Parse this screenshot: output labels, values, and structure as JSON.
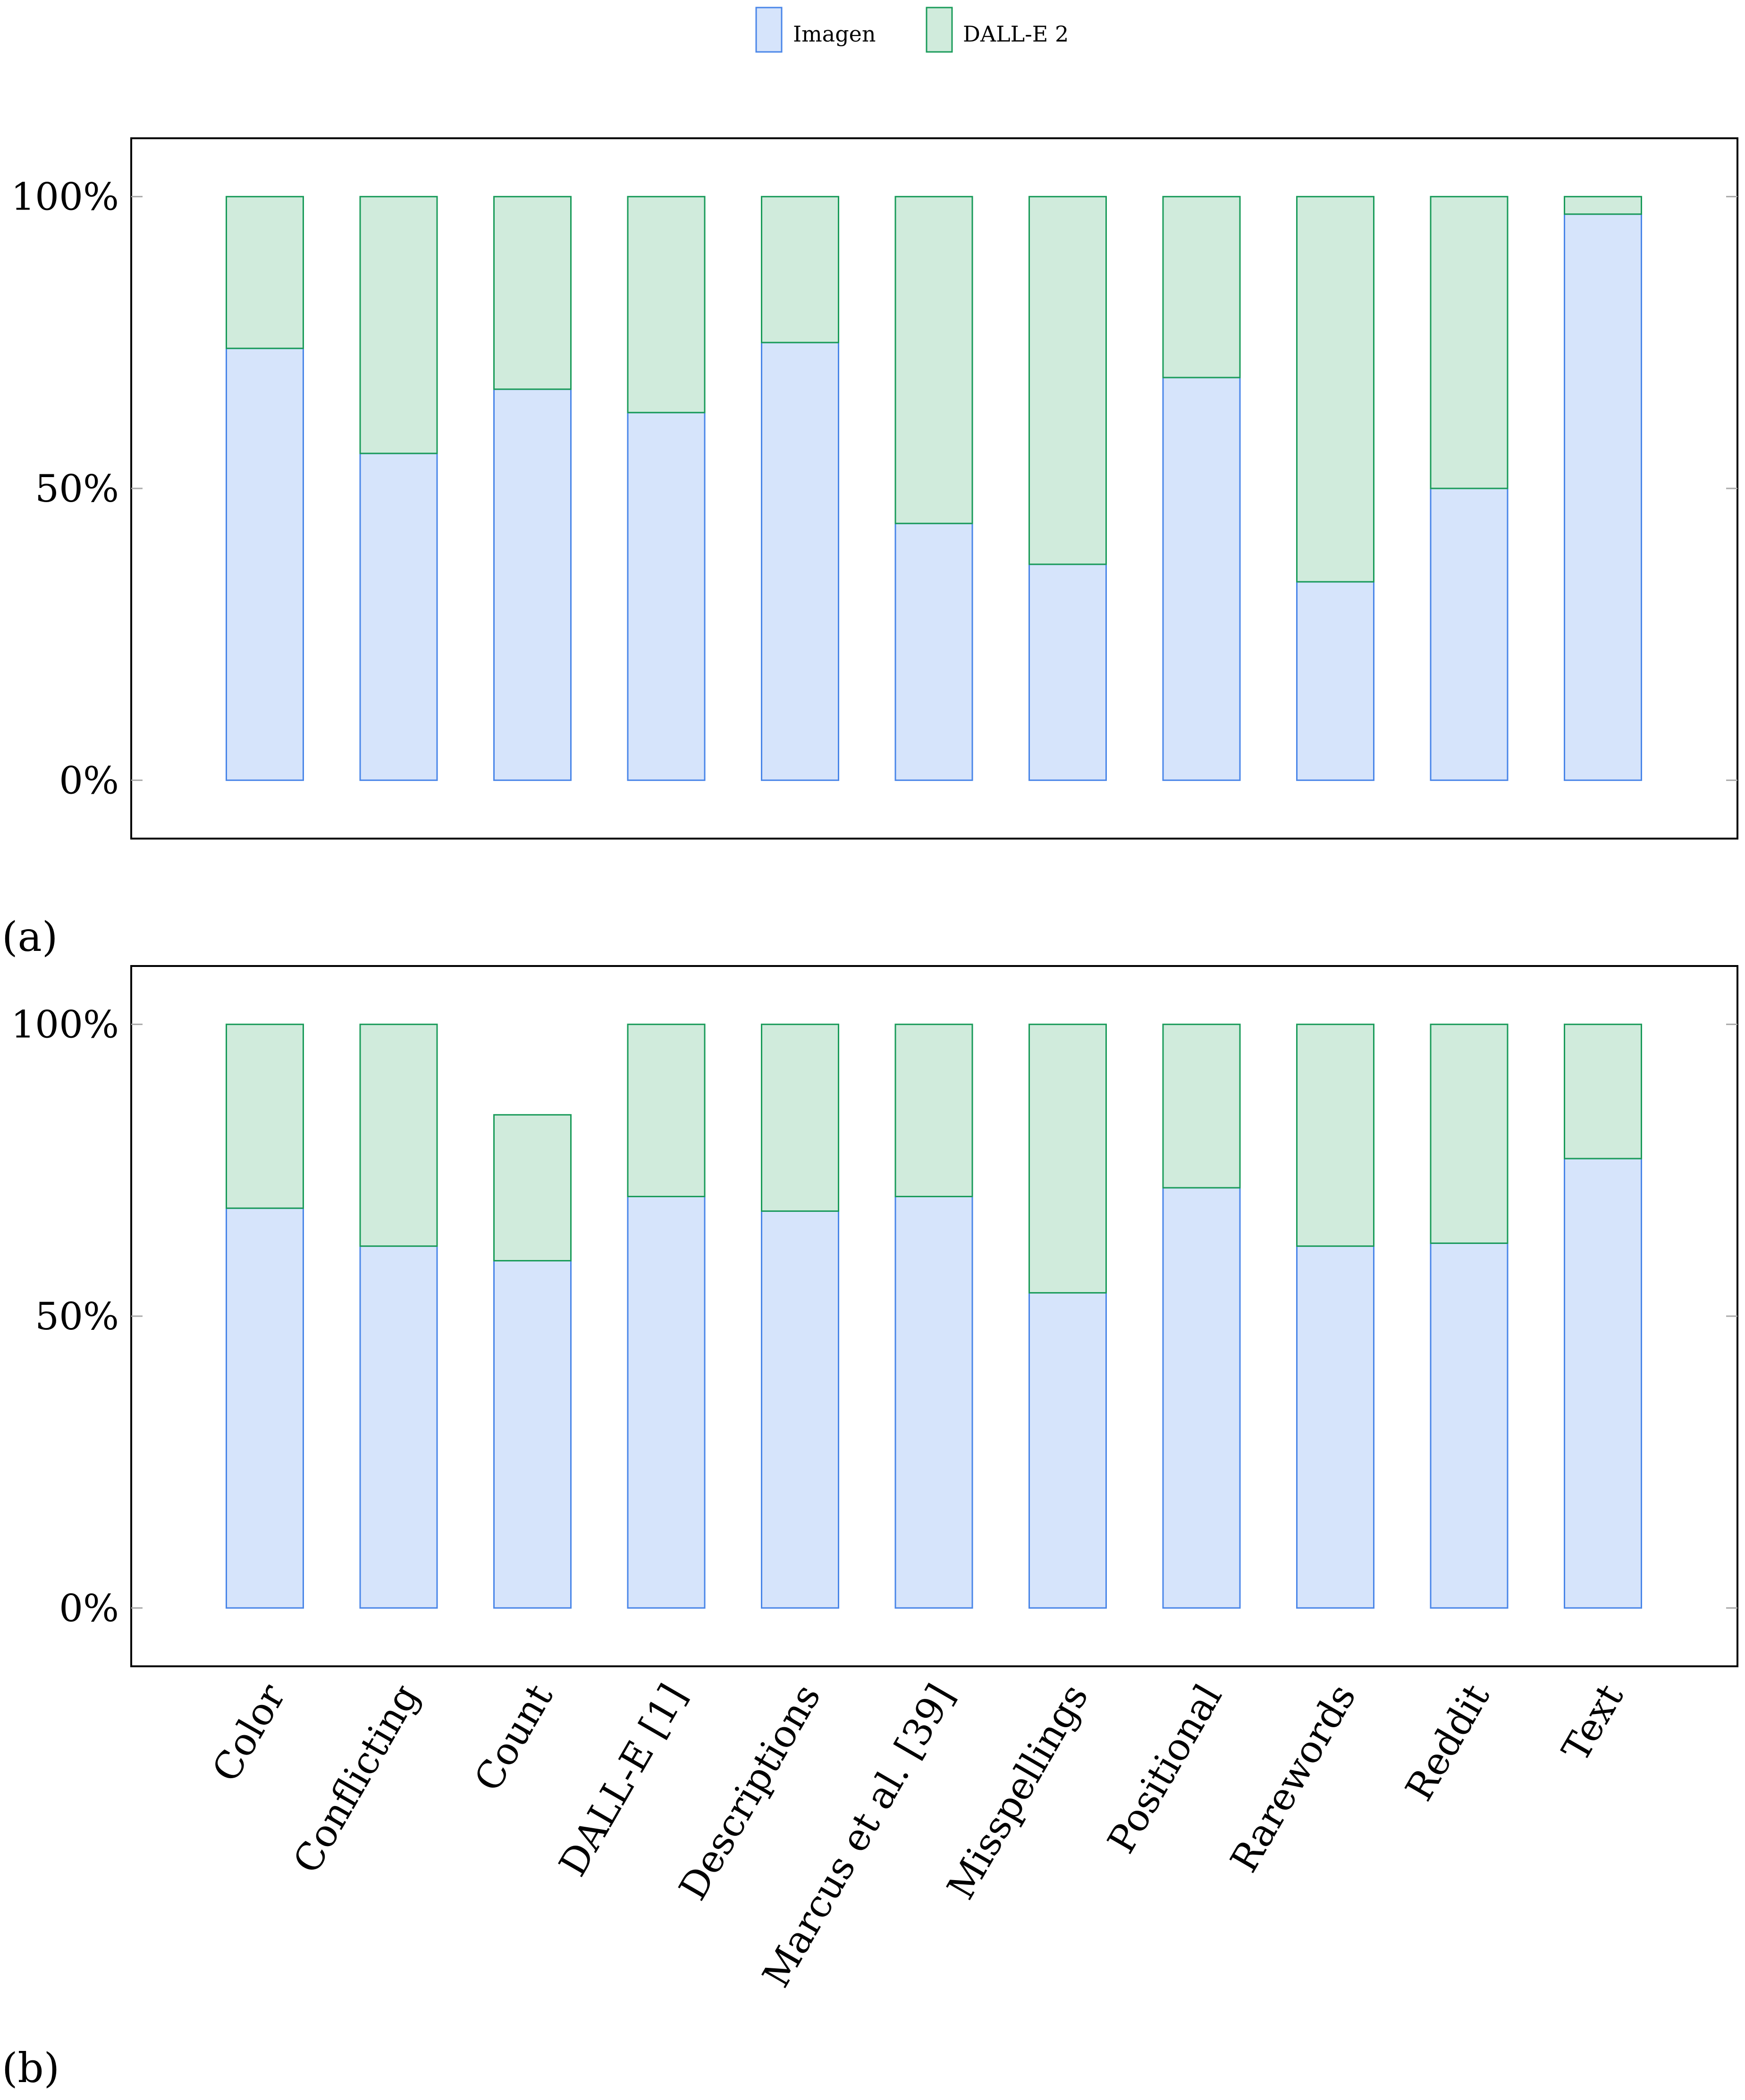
{
  "colors": {
    "imagen_fill": "#d6e4fb",
    "imagen_stroke": "#4a86e8",
    "dalle_fill": "#d0ebdc",
    "dalle_stroke": "#1a9b5a",
    "frame": "#000000",
    "tick": "#aaaaaa"
  },
  "legend": {
    "imagen": "Imagen",
    "dalle": "DALL-E 2"
  },
  "chart_data": [
    {
      "type": "bar",
      "stacked": true,
      "panel_label": "(a)",
      "categories": [
        "Color",
        "Conflicting",
        "Count",
        "DALL-E [1]",
        "Descriptions",
        "Marcus et al. [39]",
        "Misspellings",
        "Positional",
        "Rarewords",
        "Reddit",
        "Text"
      ],
      "series": [
        {
          "name": "Imagen",
          "values": [
            74,
            56,
            67,
            63,
            75,
            44,
            37,
            69,
            34,
            50,
            97
          ]
        },
        {
          "name": "DALL-E 2",
          "values": [
            26,
            44,
            33,
            37,
            25,
            56,
            63,
            31,
            66,
            50,
            3
          ]
        }
      ],
      "ylim": [
        -10,
        110
      ],
      "yticks": [
        0,
        50,
        100
      ],
      "ytick_labels": [
        "0%",
        "50%",
        "100%"
      ],
      "legend_position": "top-center"
    },
    {
      "type": "bar",
      "stacked": true,
      "panel_label": "(b)",
      "categories": [
        "Color",
        "Conflicting",
        "Count",
        "DALL-E [1]",
        "Descriptions",
        "Marcus et al. [39]",
        "Misspellings",
        "Positional",
        "Rarewords",
        "Reddit",
        "Text"
      ],
      "series": [
        {
          "name": "Imagen",
          "values": [
            68.5,
            62,
            59.5,
            70.5,
            68,
            70.5,
            54,
            72,
            62,
            62.5,
            77
          ]
        },
        {
          "name": "DALL-E 2",
          "values": [
            31.5,
            38,
            25,
            29.5,
            32,
            29.5,
            46,
            28,
            38,
            37.5,
            23
          ]
        }
      ],
      "ylim": [
        -10,
        110
      ],
      "yticks": [
        0,
        50,
        100
      ],
      "ytick_labels": [
        "0%",
        "50%",
        "100%"
      ],
      "legend_position": "top-center"
    }
  ]
}
